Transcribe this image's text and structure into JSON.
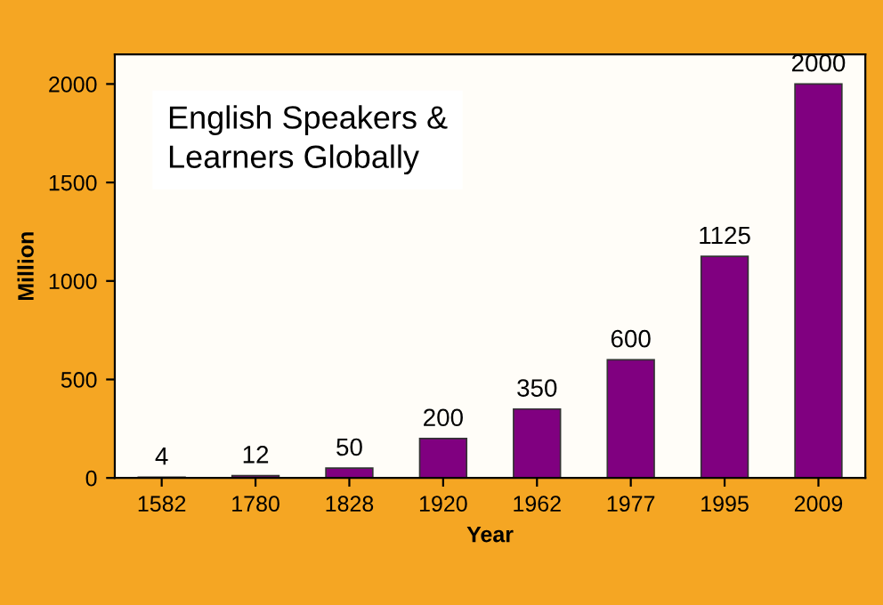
{
  "chart_data": {
    "type": "bar",
    "title": "English Speakers &\nLearners Globally",
    "xlabel": "Year",
    "ylabel": "Million",
    "categories": [
      "1582",
      "1780",
      "1828",
      "1920",
      "1962",
      "1977",
      "1995",
      "2009"
    ],
    "values": [
      4,
      12,
      50,
      200,
      350,
      600,
      1125,
      2000
    ],
    "color": "#800080",
    "ylim": [
      0,
      2150
    ],
    "yticks": [
      0,
      500,
      1000,
      1500,
      2000
    ],
    "grid": false,
    "data_labels": true
  }
}
